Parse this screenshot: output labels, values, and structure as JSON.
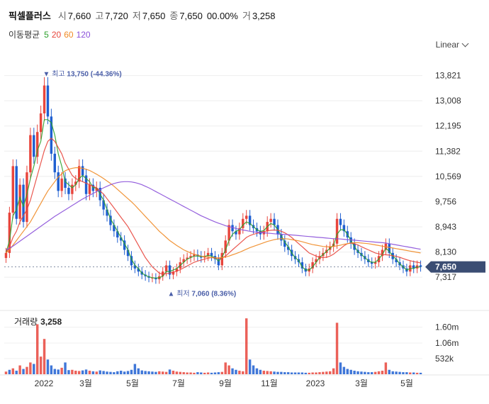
{
  "header": {
    "name": "픽셀플러스",
    "open_label": "시",
    "open": "7,660",
    "high_label": "고",
    "high": "7,720",
    "low_label": "저",
    "low": "7,650",
    "close_label": "종",
    "close": "7,650",
    "change": "0",
    "change_pct": "0.00%",
    "volume_label": "거",
    "volume": "3,258"
  },
  "moving_avg": {
    "title": "이동평균",
    "periods": [
      {
        "label": "5",
        "color": "#2ca02c"
      },
      {
        "label": "20",
        "color": "#e8453c"
      },
      {
        "label": "60",
        "color": "#f08a24"
      },
      {
        "label": "120",
        "color": "#8a4fd9"
      }
    ]
  },
  "scale_selector": "Linear",
  "volume_panel": {
    "title": "거래량",
    "value": "3,258"
  },
  "colors": {
    "up": "#e8453c",
    "down": "#1f5fd1",
    "current_price_bg": "#3b4d73"
  },
  "chart_data": {
    "type": "candlestick",
    "x_labels": [
      "2022",
      "3월",
      "5월",
      "7월",
      "9월",
      "11월",
      "2023",
      "3월",
      "5월"
    ],
    "y_ticks": [
      "13,821",
      "13,008",
      "12,195",
      "11,382",
      "10,569",
      "9,756",
      "8,943",
      "8,130",
      "7,317"
    ],
    "ylim": [
      7000,
      14200
    ],
    "current_price": "7,650",
    "max_marker": {
      "symbol": "▼",
      "label": "최고",
      "value": "13,750",
      "pct": "(-44.36%)",
      "period": 11
    },
    "min_marker": {
      "symbol": "▲",
      "label": "최저",
      "value": "7,060",
      "pct": "(8.36%)",
      "period": 47
    },
    "close_series": [
      8100,
      9400,
      10900,
      9200,
      10300,
      9100,
      10700,
      11900,
      11200,
      12000,
      12600,
      13500,
      12500,
      11300,
      10700,
      10100,
      10500,
      10200,
      10000,
      10300,
      10400,
      10900,
      10600,
      10000,
      10300,
      10100,
      10200,
      9800,
      9500,
      9300,
      9000,
      8800,
      8600,
      8500,
      8200,
      8000,
      7700,
      7600,
      7500,
      7400,
      7350,
      7300,
      7300,
      7250,
      7350,
      7500,
      7700,
      7400,
      7500,
      7600,
      7800,
      7900,
      7950,
      8000,
      8050,
      8000,
      7950,
      8000,
      8100,
      8000,
      7900,
      7700,
      8100,
      8500,
      9000,
      8800,
      8700,
      8900,
      9200,
      9300,
      9000,
      8900,
      8800,
      8700,
      8800,
      9100,
      9200,
      9000,
      8700,
      8500,
      8300,
      8200,
      8000,
      7900,
      7800,
      7600,
      7500,
      7600,
      7800,
      7900,
      8000,
      8100,
      8200,
      8300,
      8400,
      9200,
      9000,
      8800,
      8600,
      8400,
      8200,
      8100,
      8000,
      7900,
      7800,
      7750,
      7800,
      8000,
      8200,
      8400,
      8100,
      7900,
      7800,
      7700,
      7600,
      7500,
      7700,
      7600,
      7700,
      7650
    ],
    "ma_lines": [
      {
        "name": "5",
        "values": [
          8100,
          8500,
          9300,
          9500,
          9900,
          9600,
          10000,
          10500,
          10900,
          11400,
          11700,
          12400,
          12400,
          12300,
          11900,
          11300,
          10900,
          10400,
          10300,
          10200,
          10300,
          10500,
          10600,
          10500,
          10400,
          10200,
          10200,
          10000,
          9800,
          9500,
          9200,
          9000,
          8800,
          8600,
          8400,
          8200,
          7900,
          7700,
          7600,
          7450,
          7380,
          7330,
          7300,
          7290,
          7300,
          7350,
          7500,
          7500,
          7550,
          7600,
          7700,
          7800,
          7900,
          7950,
          8000,
          8000,
          7980,
          7990,
          8020,
          8000,
          7940,
          7840,
          7960,
          8200,
          8500,
          8700,
          8800,
          8850,
          9000,
          9100,
          9050,
          8950,
          8850,
          8800,
          8820,
          8950,
          9050,
          9000,
          8850,
          8650,
          8450,
          8300,
          8100,
          7950,
          7850,
          7650,
          7550,
          7550,
          7650,
          7800,
          7950,
          8050,
          8150,
          8250,
          8350,
          8700,
          8850,
          8850,
          8700,
          8500,
          8300,
          8150,
          8050,
          7950,
          7850,
          7800,
          7800,
          7900,
          8050,
          8250,
          8150,
          8000,
          7900,
          7750,
          7650,
          7550,
          7600,
          7600,
          7650,
          7650
        ]
      },
      {
        "name": "20",
        "values": [
          8100,
          8300,
          8600,
          8800,
          9100,
          9300,
          9500,
          9800,
          10200,
          10600,
          11000,
          11400,
          11700,
          11800,
          11700,
          11500,
          11300,
          11000,
          10800,
          10600,
          10500,
          10450,
          10400,
          10350,
          10300,
          10250,
          10200,
          10100,
          10000,
          9850,
          9700,
          9550,
          9400,
          9250,
          9100,
          8950,
          8750,
          8550,
          8350,
          8150,
          7950,
          7800,
          7650,
          7550,
          7450,
          7420,
          7430,
          7450,
          7480,
          7510,
          7560,
          7620,
          7680,
          7740,
          7800,
          7840,
          7870,
          7900,
          7930,
          7950,
          7940,
          7920,
          7940,
          8000,
          8100,
          8200,
          8300,
          8400,
          8500,
          8600,
          8660,
          8700,
          8730,
          8760,
          8790,
          8810,
          8830,
          8840,
          8830,
          8800,
          8750,
          8680,
          8600,
          8500,
          8400,
          8300,
          8200,
          8100,
          8050,
          8000,
          7960,
          7950,
          7960,
          8000,
          8060,
          8150,
          8240,
          8330,
          8400,
          8420,
          8400,
          8360,
          8300,
          8250,
          8200,
          8150,
          8100,
          8070,
          8050,
          8040,
          8030,
          8010,
          7990,
          7960,
          7920,
          7880,
          7850,
          7820,
          7800,
          7780
        ]
      },
      {
        "name": "60",
        "values": [
          8100,
          8200,
          8350,
          8500,
          8650,
          8800,
          8950,
          9100,
          9300,
          9500,
          9700,
          9900,
          10100,
          10250,
          10400,
          10550,
          10650,
          10750,
          10800,
          10830,
          10850,
          10850,
          10830,
          10800,
          10760,
          10700,
          10640,
          10570,
          10500,
          10420,
          10340,
          10250,
          10150,
          10050,
          9950,
          9850,
          9750,
          9640,
          9520,
          9400,
          9280,
          9160,
          9040,
          8920,
          8800,
          8700,
          8600,
          8500,
          8420,
          8340,
          8270,
          8200,
          8150,
          8100,
          8060,
          8030,
          8000,
          7980,
          7960,
          7950,
          7940,
          7940,
          7950,
          7970,
          8000,
          8040,
          8080,
          8120,
          8170,
          8220,
          8270,
          8310,
          8350,
          8390,
          8430,
          8470,
          8500,
          8530,
          8550,
          8560,
          8560,
          8550,
          8530,
          8510,
          8490,
          8460,
          8430,
          8400,
          8370,
          8350,
          8330,
          8310,
          8300,
          8300,
          8310,
          8330,
          8350,
          8380,
          8400,
          8420,
          8430,
          8430,
          8420,
          8410,
          8400,
          8380,
          8360,
          8340,
          8320,
          8300,
          8280,
          8260,
          8240,
          8220,
          8200,
          8180,
          8160,
          8140,
          8120,
          8100
        ]
      },
      {
        "name": "120",
        "values": [
          8200,
          8250,
          8320,
          8400,
          8480,
          8560,
          8640,
          8720,
          8800,
          8880,
          8960,
          9040,
          9120,
          9200,
          9280,
          9350,
          9420,
          9490,
          9560,
          9630,
          9700,
          9770,
          9840,
          9900,
          9960,
          10020,
          10080,
          10140,
          10200,
          10250,
          10300,
          10340,
          10370,
          10390,
          10400,
          10400,
          10390,
          10370,
          10340,
          10300,
          10250,
          10200,
          10140,
          10080,
          10020,
          9960,
          9900,
          9840,
          9780,
          9720,
          9660,
          9600,
          9540,
          9480,
          9420,
          9360,
          9300,
          9250,
          9200,
          9150,
          9100,
          9060,
          9020,
          8980,
          8950,
          8920,
          8890,
          8860,
          8840,
          8820,
          8800,
          8780,
          8770,
          8760,
          8750,
          8740,
          8730,
          8720,
          8710,
          8700,
          8700,
          8690,
          8680,
          8670,
          8660,
          8650,
          8640,
          8630,
          8620,
          8610,
          8600,
          8590,
          8580,
          8570,
          8560,
          8560,
          8550,
          8540,
          8530,
          8520,
          8510,
          8500,
          8490,
          8480,
          8470,
          8460,
          8450,
          8440,
          8430,
          8420,
          8400,
          8380,
          8360,
          8340,
          8320,
          8300,
          8280,
          8260,
          8240,
          8220
        ]
      }
    ],
    "volume": {
      "ticks": [
        "1.60m",
        "1.06m",
        "532k"
      ],
      "ylim": [
        0,
        2000000
      ],
      "values": [
        90000,
        150000,
        200000,
        120000,
        300000,
        180000,
        250000,
        400000,
        350000,
        1700000,
        600000,
        1200000,
        500000,
        300000,
        180000,
        160000,
        220000,
        400000,
        140000,
        150000,
        120000,
        110000,
        130000,
        160000,
        120000,
        100000,
        90000,
        130000,
        110000,
        90000,
        80000,
        70000,
        100000,
        120000,
        90000,
        110000,
        150000,
        350000,
        200000,
        130000,
        110000,
        100000,
        90000,
        80000,
        100000,
        90000,
        80000,
        160000,
        120000,
        90000,
        80000,
        70000,
        60000,
        60000,
        50000,
        70000,
        60000,
        50000,
        60000,
        50000,
        60000,
        70000,
        80000,
        400000,
        300000,
        200000,
        150000,
        120000,
        100000,
        1900000,
        500000,
        300000,
        200000,
        150000,
        120000,
        110000,
        100000,
        90000,
        80000,
        80000,
        70000,
        70000,
        60000,
        60000,
        60000,
        60000,
        50000,
        50000,
        60000,
        60000,
        70000,
        80000,
        90000,
        100000,
        200000,
        1750000,
        400000,
        250000,
        180000,
        150000,
        120000,
        100000,
        90000,
        80000,
        70000,
        70000,
        80000,
        100000,
        120000,
        400000,
        150000,
        100000,
        90000,
        80000,
        70000,
        70000,
        60000,
        60000,
        50000,
        50000
      ],
      "colors": [
        "up",
        "down",
        "up",
        "down",
        "up",
        "down",
        "up",
        "up",
        "down",
        "up",
        "up",
        "up",
        "down",
        "down",
        "down",
        "down",
        "up",
        "down",
        "down",
        "up",
        "up",
        "up",
        "down",
        "down",
        "up",
        "down",
        "up",
        "down",
        "down",
        "down",
        "down",
        "down",
        "down",
        "down",
        "down",
        "down",
        "down",
        "down",
        "down",
        "down",
        "down",
        "down",
        "down",
        "down",
        "up",
        "up",
        "up",
        "down",
        "up",
        "up",
        "up",
        "up",
        "up",
        "up",
        "up",
        "down",
        "down",
        "up",
        "up",
        "down",
        "down",
        "down",
        "up",
        "up",
        "up",
        "down",
        "down",
        "up",
        "up",
        "up",
        "down",
        "down",
        "down",
        "down",
        "up",
        "up",
        "up",
        "down",
        "down",
        "down",
        "down",
        "down",
        "down",
        "down",
        "down",
        "down",
        "down",
        "up",
        "up",
        "up",
        "up",
        "up",
        "up",
        "up",
        "up",
        "up",
        "down",
        "down",
        "down",
        "down",
        "down",
        "down",
        "down",
        "down",
        "down",
        "down",
        "up",
        "up",
        "up",
        "up",
        "down",
        "down",
        "down",
        "down",
        "down",
        "down",
        "up",
        "down",
        "up",
        "down"
      ]
    }
  }
}
